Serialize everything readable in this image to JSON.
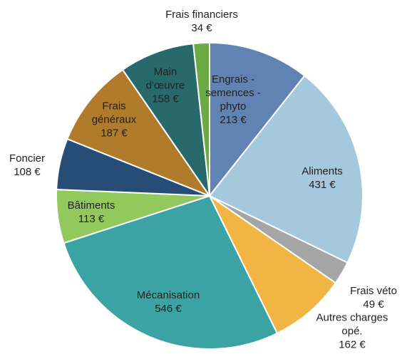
{
  "chart_data": {
    "type": "pie",
    "categories": [
      "Engrais - semences - phyto",
      "Aliments",
      "Frais véto",
      "Autres charges opé.",
      "Mécanisation",
      "Bâtiments",
      "Foncier",
      "Frais généraux",
      "Main d'œuvre",
      "Frais financiers"
    ],
    "values": [
      213,
      431,
      49,
      162,
      546,
      113,
      108,
      187,
      158,
      34
    ],
    "value_labels": [
      "213 €",
      "431 €",
      "49 €",
      "162 €",
      "546 €",
      "113 €",
      "108 €",
      "187 €",
      "158 €",
      "34 €"
    ],
    "colors": [
      "#6183b3",
      "#a6c8dc",
      "#a5a5a5",
      "#f1b544",
      "#3ba3a3",
      "#92c95c",
      "#274d76",
      "#b07c2c",
      "#286a6c",
      "#6caa46"
    ]
  }
}
